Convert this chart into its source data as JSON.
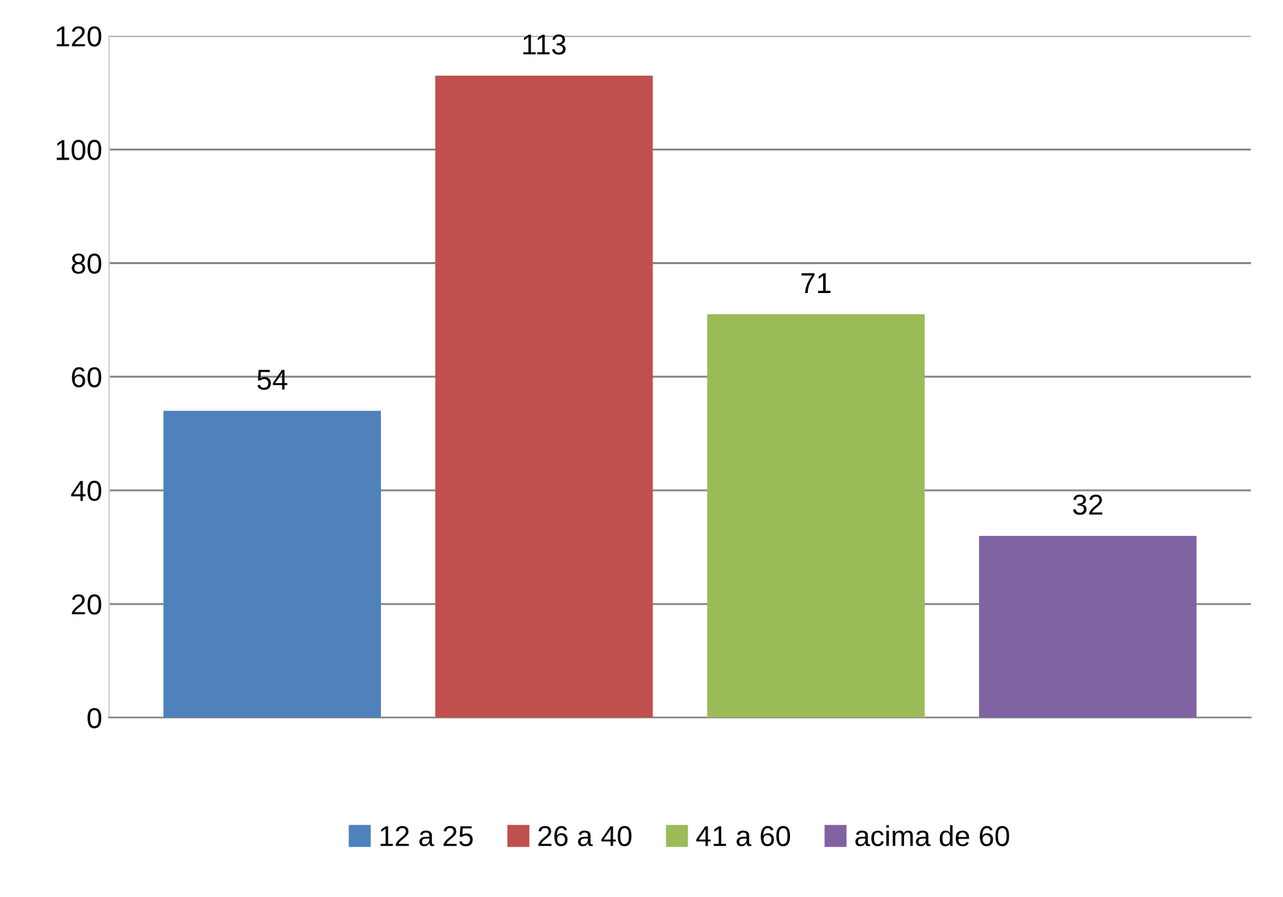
{
  "chart_data": {
    "type": "bar",
    "categories": [
      null
    ],
    "series": [
      {
        "name": "12 a 25",
        "color": "#4f81bd",
        "values": [
          54
        ]
      },
      {
        "name": "26 a 40",
        "color": "#c0504d",
        "values": [
          113
        ]
      },
      {
        "name": "41 a 60",
        "color": "#9bbb59",
        "values": [
          71
        ]
      },
      {
        "name": "acima de 60",
        "color": "#8064a2",
        "values": [
          32
        ]
      }
    ],
    "ylim": [
      0,
      120
    ],
    "yticks": [
      0,
      20,
      40,
      60,
      80,
      100,
      120
    ],
    "grid": "y",
    "legend": "bottom",
    "data_labels": true
  }
}
